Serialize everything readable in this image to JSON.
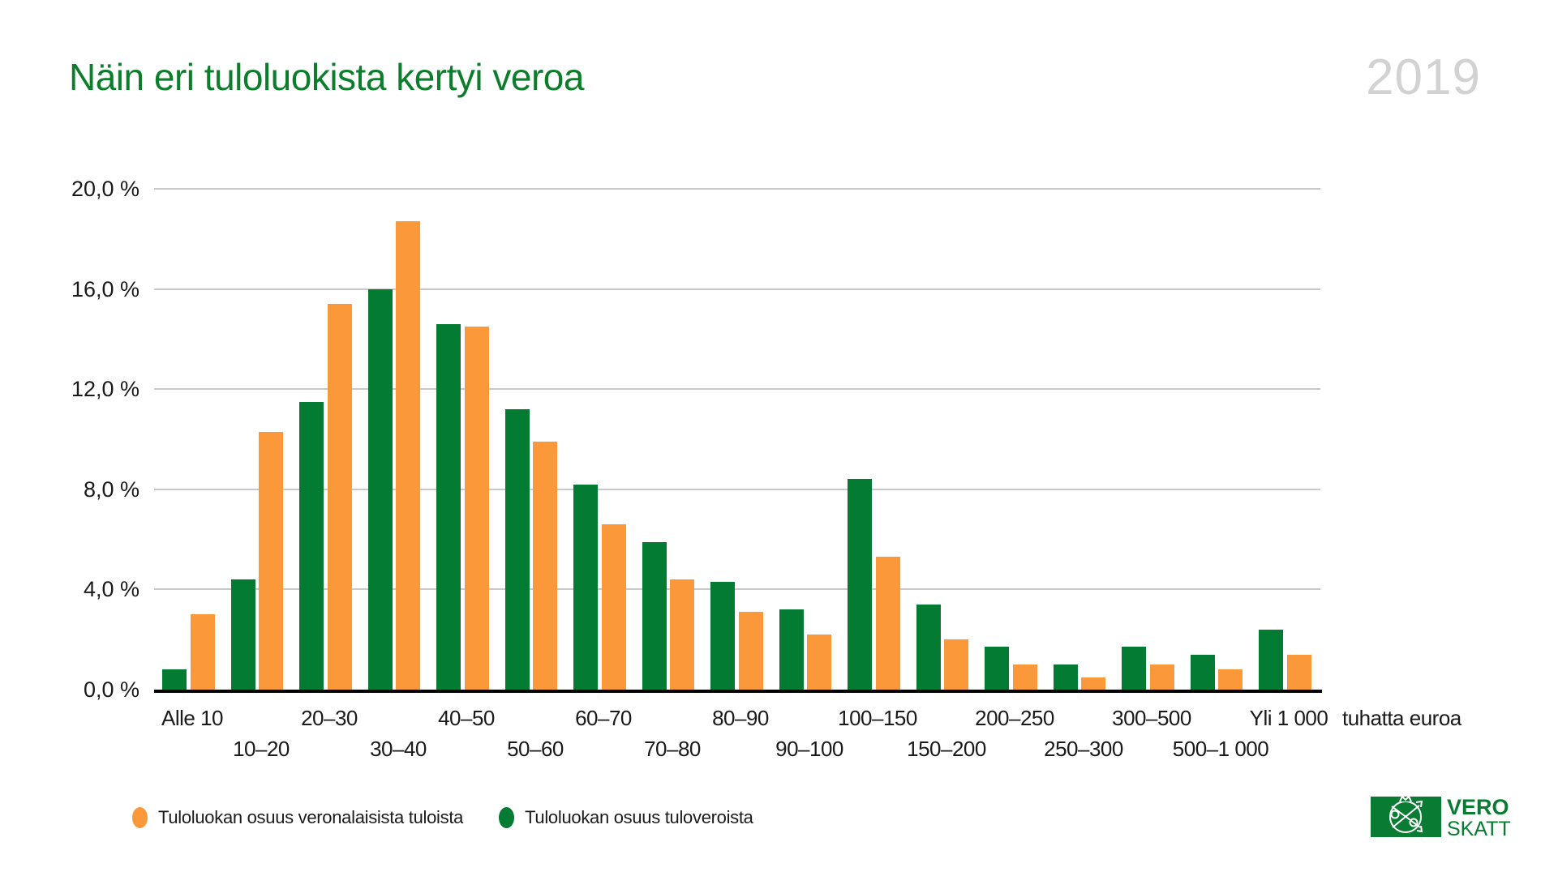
{
  "page": {
    "year": "2019"
  },
  "colors": {
    "title_green": "#0C7E2B",
    "year_gray": "#D2D2D2",
    "grid_gray": "#C8C8C8",
    "axis_black": "#000000",
    "text_dark": "#1A1A1A",
    "orange": "#FB993A",
    "green": "#047B33",
    "logo_green": "#0A7B33"
  },
  "chart_data": {
    "type": "bar",
    "title": "Näin eri tuloluokista kertyi veroa",
    "categories": [
      "Alle 10",
      "10–20",
      "20–30",
      "30–40",
      "40–50",
      "50–60",
      "60–70",
      "70–80",
      "80–90",
      "90–100",
      "100–150",
      "150–200",
      "200–250",
      "250–300",
      "300–500",
      "500–1 000",
      "Yli 1 000"
    ],
    "series": [
      {
        "name": "Tuloluokan osuus veronalaisista tuloista",
        "color": "#FB993A",
        "values": [
          3.0,
          10.3,
          15.4,
          18.7,
          14.5,
          9.9,
          6.6,
          4.4,
          3.1,
          2.2,
          5.3,
          2.0,
          1.0,
          0.5,
          1.0,
          0.8,
          1.4
        ]
      },
      {
        "name": "Tuloluokan osuus tuloveroista",
        "color": "#047B33",
        "values": [
          0.8,
          4.4,
          11.5,
          16.0,
          14.6,
          11.2,
          8.2,
          5.9,
          4.3,
          3.2,
          8.4,
          3.4,
          1.7,
          1.0,
          1.7,
          1.4,
          2.4
        ]
      }
    ],
    "pair_order": [
      "Tuloluokan osuus tuloveroista",
      "Tuloluokan osuus veronalaisista tuloista"
    ],
    "y_ticks": [
      {
        "label": "20,0 %",
        "value": 20
      },
      {
        "label": "16,0 %",
        "value": 16
      },
      {
        "label": "12,0 %",
        "value": 12
      },
      {
        "label": "8,0 %",
        "value": 8
      },
      {
        "label": "4,0 %",
        "value": 4
      },
      {
        "label": "0,0 %",
        "value": 0
      }
    ],
    "ylim": [
      0,
      20
    ],
    "x_unit_label": "tuhatta euroa",
    "grid": "horizontal",
    "legend_position": "bottom-left"
  },
  "logo": {
    "line1": "VERO",
    "line2": "SKATT"
  }
}
